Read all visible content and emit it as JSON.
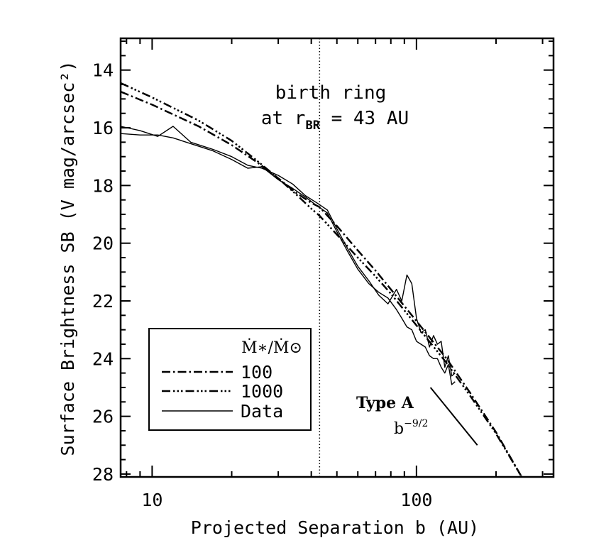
{
  "chart_data": {
    "type": "line",
    "title": "",
    "xlabel": "Projected Separation b (AU)",
    "ylabel": "Surface Brightness SB (V mag/arcsec²)",
    "xscale": "log",
    "xlim": [
      7.6,
      330
    ],
    "ylim": [
      28.1,
      12.9
    ],
    "y_inverted": true,
    "x_ticks": [
      {
        "value": 10,
        "label": "10"
      },
      {
        "value": 100,
        "label": "100"
      }
    ],
    "y_ticks": [
      {
        "value": 14,
        "label": "14"
      },
      {
        "value": 16,
        "label": "16"
      },
      {
        "value": 18,
        "label": "18"
      },
      {
        "value": 20,
        "label": "20"
      },
      {
        "value": 22,
        "label": "22"
      },
      {
        "value": 24,
        "label": "24"
      },
      {
        "value": 26,
        "label": "26"
      },
      {
        "value": 28,
        "label": "28"
      }
    ],
    "legend": {
      "placement": "lower-left",
      "header": "Ṁ∗/Ṁ⊙",
      "entries": [
        {
          "label": "100",
          "style": "dash-dot"
        },
        {
          "label": "1000",
          "style": "dash-dot-dot-dot"
        },
        {
          "label": "Data",
          "style": "solid"
        }
      ]
    },
    "series": [
      {
        "name": "100",
        "style": "dash-dot",
        "x": [
          7.6,
          10,
          15,
          20,
          25,
          30,
          35,
          40,
          43,
          50,
          60,
          70,
          80,
          100,
          130,
          160,
          200,
          250
        ],
        "y": [
          14.75,
          15.2,
          15.95,
          16.6,
          17.2,
          17.75,
          18.25,
          18.6,
          18.75,
          19.4,
          20.25,
          20.95,
          21.6,
          22.7,
          24.0,
          25.2,
          26.55,
          28.1
        ]
      },
      {
        "name": "1000",
        "style": "dash-dot-dot-dot",
        "x": [
          7.6,
          10,
          15,
          20,
          25,
          30,
          35,
          40,
          43,
          50,
          60,
          70,
          80,
          100,
          130,
          160,
          200,
          250
        ],
        "y": [
          14.45,
          14.95,
          15.75,
          16.45,
          17.15,
          17.75,
          18.3,
          18.8,
          19.05,
          19.7,
          20.5,
          21.15,
          21.75,
          22.85,
          24.15,
          25.3,
          26.6,
          28.1
        ]
      },
      {
        "name": "Data",
        "style": "solid",
        "x": [
          7.6,
          9,
          10.5,
          12,
          14,
          17,
          20,
          23,
          26,
          30,
          34,
          38,
          42,
          46,
          50,
          55,
          60,
          66,
          72,
          78,
          84,
          88,
          92,
          96,
          100,
          104,
          108,
          112,
          116,
          120,
          124,
          128,
          132,
          136,
          140
        ],
        "y": [
          15.95,
          16.1,
          16.3,
          15.95,
          16.5,
          16.75,
          17.0,
          17.3,
          17.4,
          17.65,
          17.95,
          18.35,
          18.6,
          18.85,
          19.5,
          20.2,
          20.8,
          21.3,
          21.8,
          22.1,
          21.6,
          22.0,
          21.1,
          21.4,
          22.6,
          23.1,
          23.0,
          23.6,
          23.2,
          23.5,
          23.4,
          24.3,
          23.9,
          24.6,
          24.5
        ]
      },
      {
        "name": "Data",
        "style": "solid",
        "x": [
          7.6,
          9,
          10.5,
          12,
          14,
          17,
          20,
          23,
          26,
          30,
          34,
          38,
          42,
          46,
          50,
          55,
          60,
          66,
          72,
          78,
          84,
          88,
          92,
          96,
          100,
          104,
          108,
          112,
          116,
          120,
          124,
          128,
          132,
          136,
          140
        ],
        "y": [
          16.2,
          16.25,
          16.25,
          16.35,
          16.55,
          16.8,
          17.1,
          17.4,
          17.35,
          17.8,
          18.1,
          18.4,
          18.7,
          18.95,
          19.6,
          20.3,
          20.9,
          21.4,
          21.7,
          21.9,
          22.3,
          22.6,
          22.9,
          23.0,
          23.4,
          23.5,
          23.6,
          23.9,
          24.0,
          24.0,
          24.3,
          24.5,
          24.2,
          24.9,
          24.8
        ]
      }
    ],
    "annotations": {
      "vline": {
        "x": 43,
        "style": "dotted"
      },
      "birth_ring": {
        "line1": "birth ring",
        "line2_prefix": "at r",
        "line2_sub": "BR",
        "line2_suffix": " = 43 AU"
      },
      "type_a": {
        "label": "Type A",
        "power_base": "b",
        "power_exp": "−9/2"
      },
      "slope_line": {
        "x": [
          113,
          170
        ],
        "y": [
          25.0,
          27.0
        ]
      }
    }
  }
}
